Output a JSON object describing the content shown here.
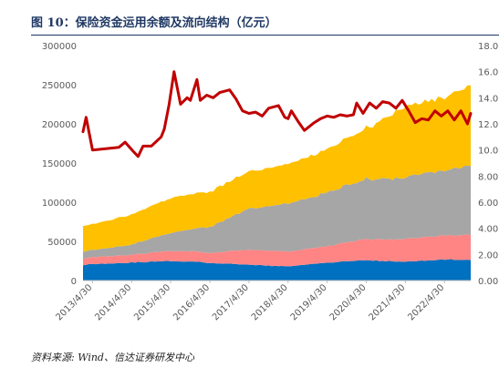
{
  "title": "图 10：保险资金运用余额及流向结构（亿元）",
  "source": "资料来源: Wind、信达证券研发中心",
  "chart_data": {
    "type": "area",
    "title": "图 10：保险资金运用余额及流向结构（亿元）",
    "x_tick_labels": [
      "2013/4/30",
      "2014/4/30",
      "2015/4/30",
      "2016/4/30",
      "2017/4/30",
      "2018/4/30",
      "2019/4/30",
      "2020/4/30",
      "2021/4/30",
      "2022/4/30"
    ],
    "y_left": {
      "lim": [
        0,
        300000
      ],
      "ticks": [
        0,
        50000,
        100000,
        150000,
        200000,
        250000,
        300000
      ]
    },
    "y_right": {
      "lim": [
        0,
        18
      ],
      "ticks": [
        "0.00",
        "2.00",
        "4.00",
        "6.00",
        "8.00",
        "10.00",
        "12.00",
        "14.00",
        "16.00",
        "18.00"
      ]
    },
    "legend": "none",
    "colors": {
      "blue": "#0070c0",
      "pink": "#ff8585",
      "gray": "#a6a6a6",
      "gold": "#ffc000",
      "line": "#c00000"
    },
    "stacked_series": [
      {
        "color": "#0070c0",
        "axis": "left",
        "points": [
          [
            "2013/1/31",
            20000
          ],
          [
            "2013/4/30",
            21000
          ],
          [
            "2014/4/30",
            23000
          ],
          [
            "2015/4/30",
            25000
          ],
          [
            "2015/12/31",
            24000
          ],
          [
            "2016/6/30",
            22000
          ],
          [
            "2017/4/30",
            20000
          ],
          [
            "2018/4/30",
            18000
          ],
          [
            "2019/4/30",
            23000
          ],
          [
            "2020/4/30",
            26000
          ],
          [
            "2021/4/30",
            24000
          ],
          [
            "2022/4/30",
            27000
          ],
          [
            "2022/12/31",
            26000
          ]
        ]
      },
      {
        "color": "#ff8585",
        "axis": "left",
        "points": [
          [
            "2013/1/31",
            8000
          ],
          [
            "2013/4/30",
            9000
          ],
          [
            "2014/4/30",
            10000
          ],
          [
            "2015/4/30",
            13000
          ],
          [
            "2016/4/30",
            13000
          ],
          [
            "2017/4/30",
            19000
          ],
          [
            "2018/4/30",
            19000
          ],
          [
            "2019/4/30",
            21000
          ],
          [
            "2020/4/30",
            27000
          ],
          [
            "2021/4/30",
            29000
          ],
          [
            "2022/4/30",
            31000
          ],
          [
            "2022/12/31",
            32000
          ]
        ]
      },
      {
        "color": "#a6a6a6",
        "axis": "left",
        "points": [
          [
            "2013/1/31",
            9000
          ],
          [
            "2013/4/30",
            9000
          ],
          [
            "2014/4/30",
            13000
          ],
          [
            "2015/4/30",
            23000
          ],
          [
            "2016/4/30",
            33000
          ],
          [
            "2017/4/30",
            52000
          ],
          [
            "2018/4/30",
            61000
          ],
          [
            "2019/4/30",
            68000
          ],
          [
            "2020/4/30",
            77000
          ],
          [
            "2021/4/30",
            78000
          ],
          [
            "2022/4/30",
            84000
          ],
          [
            "2022/12/31",
            88000
          ]
        ]
      },
      {
        "color": "#ffc000",
        "axis": "left",
        "points": [
          [
            "2013/1/31",
            33000
          ],
          [
            "2013/4/30",
            33000
          ],
          [
            "2014/4/30",
            38000
          ],
          [
            "2015/4/30",
            44000
          ],
          [
            "2016/4/30",
            45000
          ],
          [
            "2017/4/30",
            47000
          ],
          [
            "2018/4/30",
            50000
          ],
          [
            "2019/4/30",
            56000
          ],
          [
            "2020/4/30",
            65000
          ],
          [
            "2021/4/30",
            90000
          ],
          [
            "2022/4/30",
            93000
          ],
          [
            "2022/12/31",
            102000
          ]
        ]
      }
    ],
    "line_series": {
      "color": "#c00000",
      "axis": "right",
      "points": [
        [
          "2013/1/31",
          11.4
        ],
        [
          "2013/3/1",
          12.5
        ],
        [
          "2013/4/30",
          10.0
        ],
        [
          "2013/8/31",
          10.1
        ],
        [
          "2013/12/31",
          10.2
        ],
        [
          "2014/3/1",
          10.6
        ],
        [
          "2014/5/15",
          9.9
        ],
        [
          "2014/6/30",
          9.5
        ],
        [
          "2014/8/15",
          10.3
        ],
        [
          "2014/10/31",
          10.3
        ],
        [
          "2015/1/31",
          11.0
        ],
        [
          "2015/3/1",
          11.6
        ],
        [
          "2015/4/15",
          13.5
        ],
        [
          "2015/5/31",
          16.0
        ],
        [
          "2015/7/31",
          13.5
        ],
        [
          "2015/9/30",
          14.0
        ],
        [
          "2015/10/31",
          13.8
        ],
        [
          "2015/12/31",
          15.4
        ],
        [
          "2016/1/31",
          13.8
        ],
        [
          "2016/3/31",
          14.2
        ],
        [
          "2016/5/31",
          14.0
        ],
        [
          "2016/7/31",
          14.4
        ],
        [
          "2016/10/31",
          14.6
        ],
        [
          "2016/12/31",
          13.9
        ],
        [
          "2017/2/28",
          13.0
        ],
        [
          "2017/4/30",
          12.8
        ],
        [
          "2017/6/30",
          12.9
        ],
        [
          "2017/8/31",
          12.6
        ],
        [
          "2017/10/31",
          13.2
        ],
        [
          "2018/1/31",
          13.4
        ],
        [
          "2018/3/31",
          12.5
        ],
        [
          "2018/4/30",
          12.4
        ],
        [
          "2018/5/31",
          13.0
        ],
        [
          "2018/7/31",
          12.2
        ],
        [
          "2018/9/30",
          11.5
        ],
        [
          "2018/11/30",
          11.9
        ],
        [
          "2018/12/31",
          12.1
        ],
        [
          "2019/2/28",
          12.4
        ],
        [
          "2019/4/30",
          12.6
        ],
        [
          "2019/6/30",
          12.5
        ],
        [
          "2019/8/31",
          12.7
        ],
        [
          "2019/10/31",
          12.6
        ],
        [
          "2019/12/31",
          12.7
        ],
        [
          "2020/1/31",
          13.6
        ],
        [
          "2020/3/31",
          12.8
        ],
        [
          "2020/5/31",
          13.6
        ],
        [
          "2020/7/31",
          13.2
        ],
        [
          "2020/9/30",
          13.7
        ],
        [
          "2020/11/30",
          13.6
        ],
        [
          "2021/1/31",
          13.2
        ],
        [
          "2021/3/31",
          13.8
        ],
        [
          "2021/5/31",
          13.0
        ],
        [
          "2021/7/31",
          12.1
        ],
        [
          "2021/9/30",
          12.4
        ],
        [
          "2021/11/30",
          12.3
        ],
        [
          "2022/1/31",
          13.0
        ],
        [
          "2022/3/31",
          12.6
        ],
        [
          "2022/5/31",
          13.0
        ],
        [
          "2022/7/31",
          12.3
        ],
        [
          "2022/9/30",
          13.0
        ],
        [
          "2022/11/30",
          12.0
        ],
        [
          "2022/12/31",
          12.8
        ]
      ]
    }
  }
}
